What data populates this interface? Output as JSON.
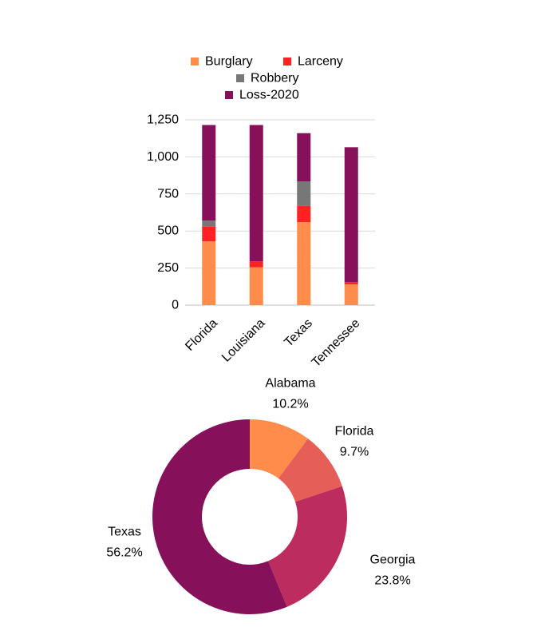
{
  "chart_data": [
    {
      "type": "bar",
      "stacked": true,
      "categories": [
        "Florida",
        "Louisiana",
        "Texas",
        "Tennessee"
      ],
      "series": [
        {
          "name": "Burglary",
          "color": "#ff8c4a",
          "values": [
            430,
            255,
            560,
            140
          ]
        },
        {
          "name": "Larceny",
          "color": "#ff2222",
          "values": [
            100,
            40,
            110,
            15
          ]
        },
        {
          "name": "Robbery",
          "color": "#777777",
          "values": [
            40,
            0,
            165,
            0
          ]
        },
        {
          "name": "Loss-2020",
          "color": "#86105a",
          "values": [
            645,
            920,
            325,
            910
          ]
        }
      ],
      "ylim": [
        0,
        1250
      ],
      "yticks": [
        "0",
        "250",
        "500",
        "750",
        "1,000",
        "1,250"
      ],
      "ytick_values": [
        0,
        250,
        500,
        750,
        1000,
        1250
      ],
      "grid": true,
      "legend": "top"
    },
    {
      "type": "pie",
      "donut": true,
      "slices": [
        {
          "label": "Alabama",
          "value": 10.2,
          "pct_text": "10.2%",
          "color": "#ff8c4a"
        },
        {
          "label": "Florida",
          "value": 9.7,
          "pct_text": "9.7%",
          "color": "#e55f58"
        },
        {
          "label": "Georgia",
          "value": 23.8,
          "pct_text": "23.8%",
          "color": "#bc2c5e"
        },
        {
          "label": "Texas",
          "value": 56.2,
          "pct_text": "56.2%",
          "color": "#86105a"
        }
      ]
    }
  ]
}
